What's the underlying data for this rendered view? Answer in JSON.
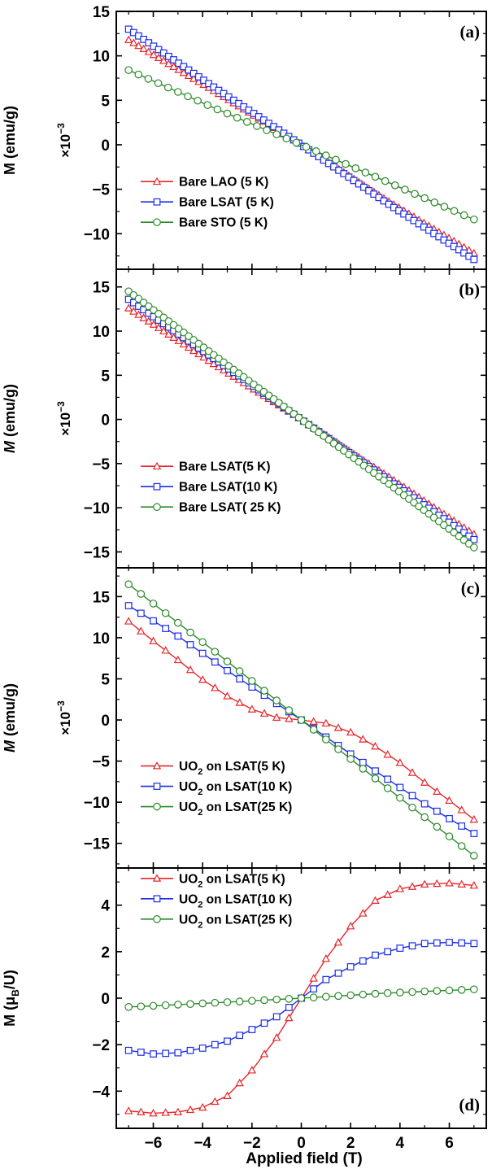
{
  "figure": {
    "xlabel": "Applied field (T)",
    "x_ticks": [
      "-6",
      "-4",
      "-2",
      "0",
      "2",
      "4",
      "6"
    ],
    "x_tick_values": [
      -6,
      -4,
      -2,
      0,
      2,
      4,
      6
    ]
  },
  "chart_data": [
    {
      "panel": "(a)",
      "type": "scatter",
      "xlabel": "Applied field (T)",
      "ylabel": "M (emu/g)",
      "ylabel_italic": false,
      "multiplier": "×10−3",
      "xlim": [
        -7.5,
        7.5
      ],
      "ylim": [
        -14,
        15
      ],
      "yticks": [
        15,
        10,
        5,
        0,
        -5,
        -10
      ],
      "legend_position": "lower-left",
      "legend_top_fraction": 0.66,
      "series": [
        {
          "name": "Bare LAO (5 K)",
          "label_html": "Bare LAO (5 K)",
          "color": "#e8262a",
          "marker": "triangle",
          "line": true,
          "x": [
            -7,
            -3.5,
            0,
            3.5,
            7
          ],
          "y": [
            11.8,
            6.0,
            0,
            -6.3,
            -12.2
          ],
          "n": 70
        },
        {
          "name": "Bare LSAT (5 K)",
          "label_html": "Bare LSAT (5 K)",
          "color": "#1a2ee8",
          "marker": "square",
          "line": true,
          "x": [
            -7,
            -3.5,
            0,
            3.5,
            7
          ],
          "y": [
            13.0,
            6.4,
            0,
            -6.6,
            -12.9
          ],
          "n": 70
        },
        {
          "name": "Bare STO (5 K)",
          "label_html": "Bare STO (5 K)",
          "color": "#2a8a26",
          "marker": "circle",
          "line": true,
          "x": [
            -7,
            -3.5,
            0,
            3.5,
            7
          ],
          "y": [
            8.4,
            4.1,
            0,
            -4.2,
            -8.4
          ],
          "n": 36
        }
      ]
    },
    {
      "panel": "(b)",
      "type": "scatter",
      "xlabel": "Applied field (T)",
      "ylabel": "M (emu/g)",
      "ylabel_italic": true,
      "multiplier": "×10−3",
      "xlim": [
        -7.5,
        7.5
      ],
      "ylim": [
        -16.8,
        17
      ],
      "yticks": [
        15,
        10,
        5,
        0,
        -5,
        -10,
        -15
      ],
      "legend_position": "lower-left",
      "legend_top_fraction": 0.66,
      "series": [
        {
          "name": "Bare LSAT(5 K)",
          "label_html": "Bare LSAT(5 K)",
          "color": "#e8262a",
          "marker": "triangle",
          "line": true,
          "x": [
            -7,
            -3.5,
            0,
            3.5,
            7
          ],
          "y": [
            12.6,
            6.2,
            0,
            -6.4,
            -13.0
          ],
          "n": 70
        },
        {
          "name": "Bare LSAT(10 K)",
          "label_html": "Bare LSAT(10 K)",
          "color": "#1a2ee8",
          "marker": "square",
          "line": true,
          "x": [
            -7,
            -3.5,
            0,
            3.5,
            7
          ],
          "y": [
            13.6,
            6.8,
            0,
            -6.8,
            -13.6
          ],
          "n": 70
        },
        {
          "name": "Bare LSAT( 25 K)",
          "label_html": "Bare LSAT( 25 K)",
          "color": "#2a8a26",
          "marker": "circle",
          "line": true,
          "x": [
            -7,
            -3.5,
            0,
            3.5,
            7
          ],
          "y": [
            14.5,
            7.2,
            0,
            -7.2,
            -14.5
          ],
          "n": 70
        }
      ]
    },
    {
      "panel": "(c)",
      "type": "scatter",
      "xlabel": "Applied field (T)",
      "ylabel": "M (emu/g)",
      "ylabel_italic": true,
      "multiplier": "×10−3",
      "xlim": [
        -7.5,
        7.5
      ],
      "ylim": [
        -18,
        18.5
      ],
      "yticks": [
        15,
        10,
        5,
        0,
        -5,
        -10,
        -15
      ],
      "legend_position": "lower-left",
      "legend_top_fraction": 0.66,
      "series": [
        {
          "name": "UO₂ on LSAT(5 K)",
          "label_html": "UO<tspan font-size='11' dy='5'>2</tspan><tspan dy='-5'> on LSAT(5 K)</tspan>",
          "color": "#e8262a",
          "marker": "triangle",
          "line": true,
          "x": [
            -7,
            -6,
            -5,
            -4,
            -3,
            -2,
            -1,
            0,
            1,
            2,
            3,
            4,
            5,
            6,
            7
          ],
          "y": [
            12.0,
            9.6,
            7.3,
            4.9,
            2.9,
            1.3,
            0.3,
            0,
            -0.4,
            -1.5,
            -3.2,
            -5.2,
            -7.6,
            -9.8,
            -12.1
          ],
          "n": 29
        },
        {
          "name": "UO₂ on LSAT(10 K)",
          "label_html": "UO<tspan font-size='11' dy='5'>2</tspan><tspan dy='-5'> on LSAT(10 K)</tspan>",
          "color": "#1a2ee8",
          "marker": "square",
          "line": true,
          "x": [
            -7,
            -5,
            -3,
            0,
            3,
            5,
            7
          ],
          "y": [
            13.9,
            10.2,
            6.0,
            0,
            -6.2,
            -10.2,
            -13.8
          ],
          "n": 29
        },
        {
          "name": "UO₂ on LSAT(25 K)",
          "label_html": "UO<tspan font-size='11' dy='5'>2</tspan><tspan dy='-5'> on LSAT(25 K)</tspan>",
          "color": "#2a8a26",
          "marker": "circle",
          "line": true,
          "x": [
            -7,
            -3.5,
            0,
            3.5,
            7
          ],
          "y": [
            16.5,
            8.3,
            0,
            -8.3,
            -16.5
          ],
          "n": 29
        }
      ]
    },
    {
      "panel": "(d)",
      "type": "scatter",
      "xlabel": "Applied field (T)",
      "ylabel": "M (μB/U)",
      "ylabel_italic": false,
      "multiplier": "",
      "xlim": [
        -7.5,
        7.5
      ],
      "ylim": [
        -5.6,
        5.6
      ],
      "yticks": [
        4,
        2,
        0,
        -2,
        -4
      ],
      "legend_position": "top-left",
      "legend_top_fraction": 0.04,
      "series": [
        {
          "name": "UO₂ on LSAT(5 K)",
          "label_html": "UO<tspan font-size='11' dy='5'>2</tspan><tspan dy='-5'> on LSAT(5 K)</tspan>",
          "color": "#e8262a",
          "marker": "triangle",
          "line": true,
          "x": [
            -7,
            -6,
            -5,
            -4,
            -3,
            -2,
            -1,
            0,
            1,
            2,
            3,
            4,
            5,
            6,
            7
          ],
          "y": [
            -4.85,
            -4.95,
            -4.9,
            -4.7,
            -4.2,
            -3.1,
            -1.7,
            0,
            1.7,
            3.1,
            4.2,
            4.7,
            4.9,
            4.95,
            4.85
          ],
          "n": 29
        },
        {
          "name": "UO₂ on LSAT(10 K)",
          "label_html": "UO<tspan font-size='11' dy='5'>2</tspan><tspan dy='-5'> on LSAT(10 K)</tspan>",
          "color": "#1a2ee8",
          "marker": "square",
          "line": true,
          "x": [
            -7,
            -6,
            -5,
            -4,
            -3,
            -2,
            -1,
            0,
            1,
            2,
            3,
            4,
            5,
            6,
            7
          ],
          "y": [
            -2.25,
            -2.4,
            -2.35,
            -2.15,
            -1.85,
            -1.35,
            -0.8,
            0,
            0.8,
            1.35,
            1.85,
            2.15,
            2.35,
            2.4,
            2.35
          ],
          "n": 29
        },
        {
          "name": "UO₂ on LSAT(25 K)",
          "label_html": "UO<tspan font-size='11' dy='5'>2</tspan><tspan dy='-5'> on LSAT(25 K)</tspan>",
          "color": "#2a8a26",
          "marker": "circle",
          "line": true,
          "x": [
            -7,
            -3.5,
            0,
            3.5,
            7
          ],
          "y": [
            -0.38,
            -0.2,
            0,
            0.22,
            0.38
          ],
          "n": 29
        }
      ]
    }
  ]
}
